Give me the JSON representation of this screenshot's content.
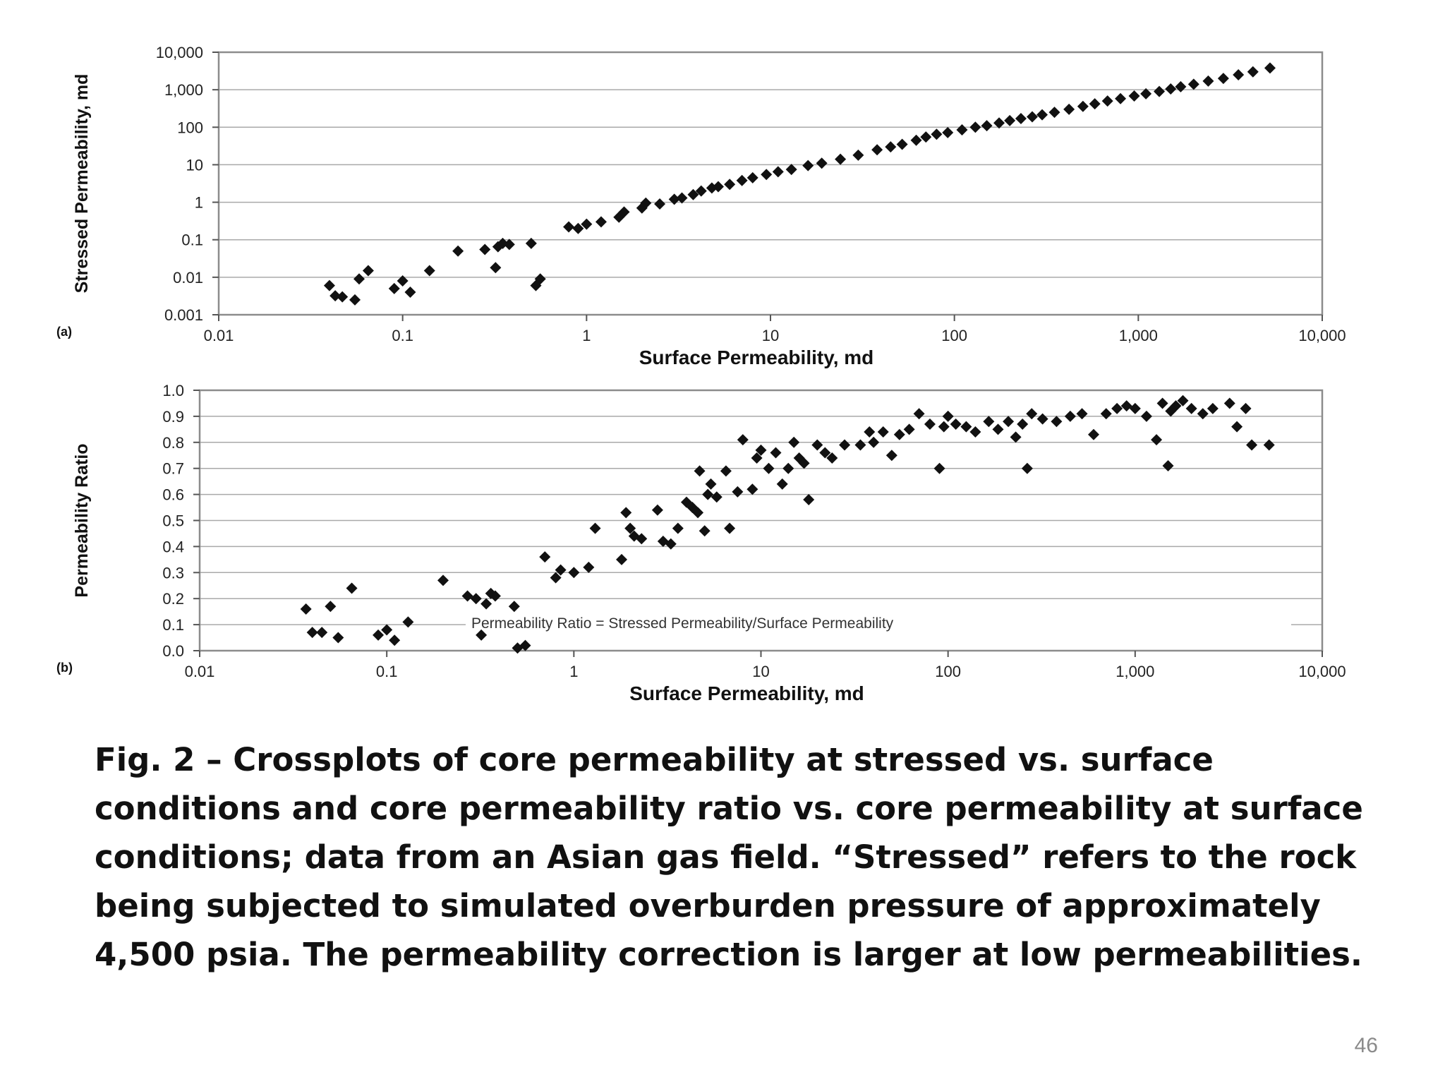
{
  "slide": {
    "caption": "Fig. 2 – Crossplots of core permeability at stressed vs. surface conditions and core permeability ratio vs. core permeability at surface conditions; data from an Asian gas field. “Stressed” refers to the rock being subjected to simulated overburden pressure of approximately 4,500 psia. The permeability correction is larger at low permeabilities.",
    "page_number": "46"
  },
  "chart_data": [
    {
      "type": "scatter",
      "panel_label": "(a)",
      "xlabel": "Surface Permeability, md",
      "ylabel": "Stressed Permeability, md",
      "xscale": "log",
      "yscale": "log",
      "xlim": [
        0.01,
        10000
      ],
      "ylim": [
        0.001,
        10000
      ],
      "grid": true,
      "marker": "diamond",
      "marker_color": "#111111",
      "x_ticks": [
        "0.01",
        "0.1",
        "1",
        "10",
        "100",
        "1,000",
        "10,000"
      ],
      "y_ticks": [
        "0.001",
        "0.01",
        "0.1",
        "1",
        "10",
        "100",
        "1,000",
        "10,000"
      ],
      "points": [
        [
          0.04,
          0.006
        ],
        [
          0.043,
          0.0032
        ],
        [
          0.047,
          0.003
        ],
        [
          0.055,
          0.0025
        ],
        [
          0.058,
          0.009
        ],
        [
          0.065,
          0.015
        ],
        [
          0.09,
          0.005
        ],
        [
          0.1,
          0.008
        ],
        [
          0.11,
          0.004
        ],
        [
          0.14,
          0.015
        ],
        [
          0.2,
          0.05
        ],
        [
          0.28,
          0.055
        ],
        [
          0.32,
          0.018
        ],
        [
          0.33,
          0.065
        ],
        [
          0.35,
          0.08
        ],
        [
          0.38,
          0.075
        ],
        [
          0.5,
          0.08
        ],
        [
          0.53,
          0.006
        ],
        [
          0.56,
          0.009
        ],
        [
          0.8,
          0.22
        ],
        [
          0.9,
          0.2
        ],
        [
          1.0,
          0.26
        ],
        [
          1.2,
          0.3
        ],
        [
          1.5,
          0.4
        ],
        [
          1.6,
          0.55
        ],
        [
          2.0,
          0.7
        ],
        [
          2.1,
          0.95
        ],
        [
          2.5,
          0.9
        ],
        [
          3.0,
          1.2
        ],
        [
          3.3,
          1.3
        ],
        [
          3.8,
          1.6
        ],
        [
          4.2,
          2.0
        ],
        [
          4.8,
          2.4
        ],
        [
          5.2,
          2.6
        ],
        [
          6.0,
          3.0
        ],
        [
          7.0,
          3.8
        ],
        [
          8.0,
          4.5
        ],
        [
          9.5,
          5.5
        ],
        [
          11,
          6.5
        ],
        [
          13,
          7.5
        ],
        [
          16,
          9.5
        ],
        [
          19,
          11
        ],
        [
          24,
          14
        ],
        [
          30,
          18
        ],
        [
          38,
          25
        ],
        [
          45,
          30
        ],
        [
          52,
          35
        ],
        [
          62,
          45
        ],
        [
          70,
          55
        ],
        [
          80,
          65
        ],
        [
          92,
          72
        ],
        [
          110,
          85
        ],
        [
          130,
          100
        ],
        [
          150,
          110
        ],
        [
          175,
          130
        ],
        [
          200,
          150
        ],
        [
          230,
          170
        ],
        [
          265,
          190
        ],
        [
          300,
          215
        ],
        [
          350,
          250
        ],
        [
          420,
          300
        ],
        [
          500,
          360
        ],
        [
          580,
          420
        ],
        [
          680,
          500
        ],
        [
          800,
          580
        ],
        [
          950,
          680
        ],
        [
          1100,
          780
        ],
        [
          1300,
          900
        ],
        [
          1500,
          1050
        ],
        [
          1700,
          1200
        ],
        [
          2000,
          1400
        ],
        [
          2400,
          1700
        ],
        [
          2900,
          2000
        ],
        [
          3500,
          2500
        ],
        [
          4200,
          3000
        ],
        [
          5200,
          3800
        ]
      ]
    },
    {
      "type": "scatter",
      "panel_label": "(b)",
      "xlabel": "Surface Permeability, md",
      "ylabel": "Permeability Ratio",
      "xscale": "log",
      "yscale": "linear",
      "xlim": [
        0.01,
        10000
      ],
      "ylim": [
        0.0,
        1.0
      ],
      "grid": true,
      "marker": "diamond",
      "marker_color": "#111111",
      "annotation": "Permeability Ratio = Stressed Permeability/Surface Permeability",
      "x_ticks": [
        "0.01",
        "0.1",
        "1",
        "10",
        "100",
        "1,000",
        "10,000"
      ],
      "y_ticks": [
        "0.0",
        "0.1",
        "0.2",
        "0.3",
        "0.4",
        "0.5",
        "0.6",
        "0.7",
        "0.8",
        "0.9",
        "1.0"
      ],
      "points": [
        [
          0.037,
          0.16
        ],
        [
          0.04,
          0.07
        ],
        [
          0.045,
          0.07
        ],
        [
          0.05,
          0.17
        ],
        [
          0.055,
          0.05
        ],
        [
          0.065,
          0.24
        ],
        [
          0.09,
          0.06
        ],
        [
          0.1,
          0.08
        ],
        [
          0.11,
          0.04
        ],
        [
          0.13,
          0.11
        ],
        [
          0.2,
          0.27
        ],
        [
          0.27,
          0.21
        ],
        [
          0.3,
          0.2
        ],
        [
          0.32,
          0.06
        ],
        [
          0.34,
          0.18
        ],
        [
          0.36,
          0.22
        ],
        [
          0.38,
          0.21
        ],
        [
          0.48,
          0.17
        ],
        [
          0.5,
          0.01
        ],
        [
          0.55,
          0.02
        ],
        [
          0.7,
          0.36
        ],
        [
          0.8,
          0.28
        ],
        [
          0.85,
          0.31
        ],
        [
          1.0,
          0.3
        ],
        [
          1.2,
          0.32
        ],
        [
          1.3,
          0.47
        ],
        [
          1.8,
          0.35
        ],
        [
          1.9,
          0.53
        ],
        [
          2.0,
          0.47
        ],
        [
          2.1,
          0.44
        ],
        [
          2.3,
          0.43
        ],
        [
          2.8,
          0.54
        ],
        [
          3.0,
          0.42
        ],
        [
          3.3,
          0.41
        ],
        [
          3.6,
          0.47
        ],
        [
          4.0,
          0.57
        ],
        [
          4.3,
          0.55
        ],
        [
          4.6,
          0.53
        ],
        [
          4.7,
          0.69
        ],
        [
          5.0,
          0.46
        ],
        [
          5.2,
          0.6
        ],
        [
          5.4,
          0.64
        ],
        [
          5.8,
          0.59
        ],
        [
          6.5,
          0.69
        ],
        [
          6.8,
          0.47
        ],
        [
          7.5,
          0.61
        ],
        [
          8.0,
          0.81
        ],
        [
          9.0,
          0.62
        ],
        [
          9.5,
          0.74
        ],
        [
          10,
          0.77
        ],
        [
          11,
          0.7
        ],
        [
          12,
          0.76
        ],
        [
          13,
          0.64
        ],
        [
          14,
          0.7
        ],
        [
          15,
          0.8
        ],
        [
          16,
          0.74
        ],
        [
          17,
          0.72
        ],
        [
          18,
          0.58
        ],
        [
          20,
          0.79
        ],
        [
          22,
          0.76
        ],
        [
          24,
          0.74
        ],
        [
          28,
          0.79
        ],
        [
          34,
          0.79
        ],
        [
          38,
          0.84
        ],
        [
          40,
          0.8
        ],
        [
          45,
          0.84
        ],
        [
          50,
          0.75
        ],
        [
          55,
          0.83
        ],
        [
          62,
          0.85
        ],
        [
          70,
          0.91
        ],
        [
          80,
          0.87
        ],
        [
          90,
          0.7
        ],
        [
          95,
          0.86
        ],
        [
          100,
          0.9
        ],
        [
          110,
          0.87
        ],
        [
          125,
          0.86
        ],
        [
          140,
          0.84
        ],
        [
          165,
          0.88
        ],
        [
          185,
          0.85
        ],
        [
          210,
          0.88
        ],
        [
          230,
          0.82
        ],
        [
          250,
          0.87
        ],
        [
          265,
          0.7
        ],
        [
          280,
          0.91
        ],
        [
          320,
          0.89
        ],
        [
          380,
          0.88
        ],
        [
          450,
          0.9
        ],
        [
          520,
          0.91
        ],
        [
          600,
          0.83
        ],
        [
          700,
          0.91
        ],
        [
          800,
          0.93
        ],
        [
          900,
          0.94
        ],
        [
          1000,
          0.93
        ],
        [
          1150,
          0.9
        ],
        [
          1300,
          0.81
        ],
        [
          1400,
          0.95
        ],
        [
          1500,
          0.71
        ],
        [
          1550,
          0.92
        ],
        [
          1650,
          0.94
        ],
        [
          1800,
          0.96
        ],
        [
          2000,
          0.93
        ],
        [
          2300,
          0.91
        ],
        [
          2600,
          0.93
        ],
        [
          3200,
          0.95
        ],
        [
          3500,
          0.86
        ],
        [
          3900,
          0.93
        ],
        [
          4200,
          0.79
        ],
        [
          5200,
          0.79
        ]
      ]
    }
  ]
}
